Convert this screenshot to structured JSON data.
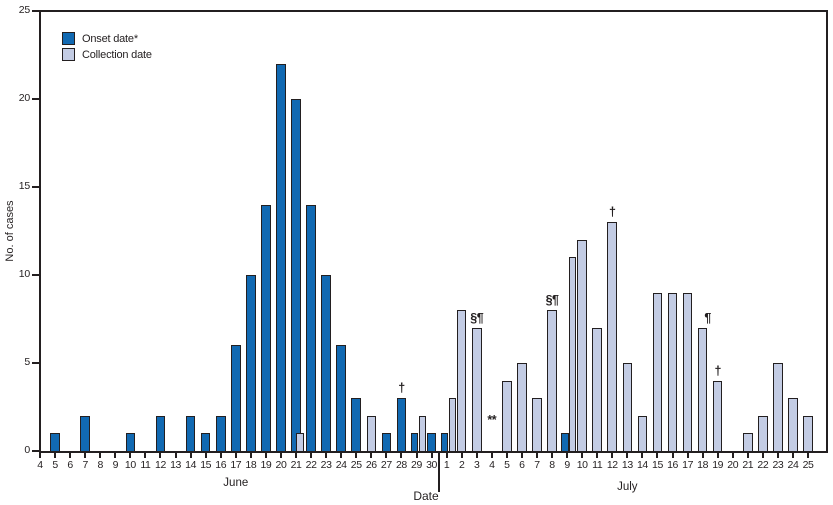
{
  "chart_data": {
    "type": "bar",
    "title": "",
    "xlabel": "Date",
    "ylabel": "No. of cases",
    "ylim": [
      0,
      25
    ],
    "yticks": [
      0,
      5,
      10,
      15,
      20,
      25
    ],
    "grid": false,
    "legend_position": "top-left-inside",
    "legend": [
      {
        "series": "onset",
        "label": "Onset date*"
      },
      {
        "series": "collection",
        "label": "Collection date"
      }
    ],
    "series_colors": {
      "onset": "#1169b2",
      "collection": "#c3cce4"
    },
    "months": [
      {
        "name": "June",
        "start_day": 4,
        "end_day": 30
      },
      {
        "name": "July",
        "start_day": 1,
        "end_day": 25
      }
    ],
    "bars": [
      {
        "month": "June",
        "day": 5,
        "series": "onset",
        "value": 1
      },
      {
        "month": "June",
        "day": 7,
        "series": "onset",
        "value": 2
      },
      {
        "month": "June",
        "day": 10,
        "series": "onset",
        "value": 1
      },
      {
        "month": "June",
        "day": 12,
        "series": "onset",
        "value": 2
      },
      {
        "month": "June",
        "day": 14,
        "series": "onset",
        "value": 2
      },
      {
        "month": "June",
        "day": 15,
        "series": "onset",
        "value": 1
      },
      {
        "month": "June",
        "day": 16,
        "series": "onset",
        "value": 2
      },
      {
        "month": "June",
        "day": 17,
        "series": "onset",
        "value": 6
      },
      {
        "month": "June",
        "day": 18,
        "series": "onset",
        "value": 10
      },
      {
        "month": "June",
        "day": 19,
        "series": "onset",
        "value": 14
      },
      {
        "month": "June",
        "day": 20,
        "series": "onset",
        "value": 22
      },
      {
        "month": "June",
        "day": 21,
        "series": "onset",
        "value": 20
      },
      {
        "month": "June",
        "day": 21,
        "series": "collection",
        "value": 1,
        "dx": 0.28,
        "w": 7.5
      },
      {
        "month": "June",
        "day": 22,
        "series": "onset",
        "value": 14
      },
      {
        "month": "June",
        "day": 23,
        "series": "onset",
        "value": 10
      },
      {
        "month": "June",
        "day": 24,
        "series": "onset",
        "value": 6
      },
      {
        "month": "June",
        "day": 25,
        "series": "onset",
        "value": 3
      },
      {
        "month": "June",
        "day": 26,
        "series": "collection",
        "value": 2
      },
      {
        "month": "June",
        "day": 27,
        "series": "onset",
        "value": 1
      },
      {
        "month": "June",
        "day": 28,
        "series": "onset",
        "value": 3
      },
      {
        "month": "June",
        "day": 29,
        "series": "onset",
        "value": 1,
        "dx": -0.14,
        "w": 7.2
      },
      {
        "month": "June",
        "day": 29,
        "series": "collection",
        "value": 2,
        "dx": 0.38,
        "w": 7.2
      },
      {
        "month": "June",
        "day": 30,
        "series": "onset",
        "value": 1
      },
      {
        "month": "July",
        "day": 1,
        "series": "onset",
        "value": 1,
        "dx": -0.14,
        "w": 7.2
      },
      {
        "month": "July",
        "day": 1,
        "series": "collection",
        "value": 3,
        "dx": 0.38,
        "w": 7.2
      },
      {
        "month": "July",
        "day": 2,
        "series": "collection",
        "value": 8
      },
      {
        "month": "July",
        "day": 3,
        "series": "collection",
        "value": 7
      },
      {
        "month": "July",
        "day": 5,
        "series": "collection",
        "value": 4
      },
      {
        "month": "July",
        "day": 6,
        "series": "collection",
        "value": 5
      },
      {
        "month": "July",
        "day": 7,
        "series": "collection",
        "value": 3
      },
      {
        "month": "July",
        "day": 8,
        "series": "collection",
        "value": 8
      },
      {
        "month": "July",
        "day": 9,
        "series": "onset",
        "value": 1,
        "dx": -0.14,
        "w": 7.2
      },
      {
        "month": "July",
        "day": 9,
        "series": "collection",
        "value": 11,
        "dx": 0.38,
        "w": 7.2
      },
      {
        "month": "July",
        "day": 10,
        "series": "collection",
        "value": 12
      },
      {
        "month": "July",
        "day": 11,
        "series": "collection",
        "value": 7
      },
      {
        "month": "July",
        "day": 12,
        "series": "collection",
        "value": 13
      },
      {
        "month": "July",
        "day": 13,
        "series": "collection",
        "value": 5
      },
      {
        "month": "July",
        "day": 14,
        "series": "collection",
        "value": 2
      },
      {
        "month": "July",
        "day": 15,
        "series": "collection",
        "value": 9
      },
      {
        "month": "July",
        "day": 16,
        "series": "collection",
        "value": 9
      },
      {
        "month": "July",
        "day": 17,
        "series": "collection",
        "value": 9
      },
      {
        "month": "July",
        "day": 18,
        "series": "collection",
        "value": 7
      },
      {
        "month": "July",
        "day": 19,
        "series": "collection",
        "value": 4
      },
      {
        "month": "July",
        "day": 21,
        "series": "collection",
        "value": 1
      },
      {
        "month": "July",
        "day": 22,
        "series": "collection",
        "value": 2
      },
      {
        "month": "July",
        "day": 23,
        "series": "collection",
        "value": 5
      },
      {
        "month": "July",
        "day": 24,
        "series": "collection",
        "value": 3
      },
      {
        "month": "July",
        "day": 25,
        "series": "collection",
        "value": 2
      }
    ],
    "annotations": [
      {
        "month": "June",
        "day": 28,
        "text": "†",
        "at_value": 3
      },
      {
        "month": "July",
        "day": 3,
        "text": "§¶",
        "at_value": 7
      },
      {
        "month": "July",
        "day": 4,
        "text": "**",
        "at_value": 1.2
      },
      {
        "month": "July",
        "day": 8,
        "text": "§¶",
        "at_value": 8
      },
      {
        "month": "July",
        "day": 12,
        "text": "†",
        "at_value": 13
      },
      {
        "month": "July",
        "day": 18,
        "text": "¶",
        "at_value": 7,
        "dx": 0.33
      },
      {
        "month": "July",
        "day": 19,
        "text": "†",
        "at_value": 4
      }
    ]
  }
}
